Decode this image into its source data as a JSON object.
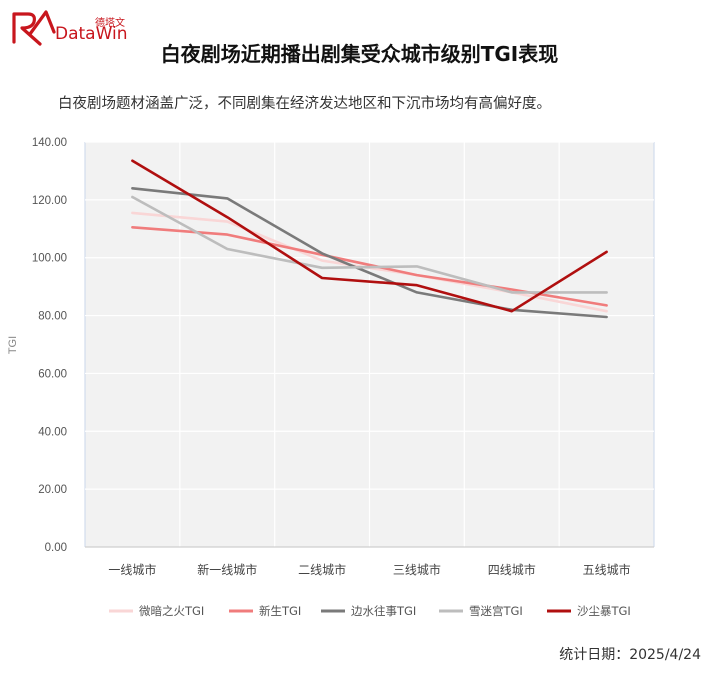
{
  "brand": {
    "cn": "德塔文",
    "en": "DataWin",
    "color": "#c8161d"
  },
  "title": "白夜剧场近期播出剧集受众城市级别TGI表现",
  "subtitle": "白夜剧场题材涵盖广泛，不同剧集在经济发达地区和下沉市场均有高偏好度。",
  "footer": {
    "label": "统计日期：",
    "value": "2025/4/24"
  },
  "chart_data": {
    "type": "line",
    "ylabel": "TGI",
    "ylim": [
      0,
      140
    ],
    "yticks": [
      "0.00",
      "20.00",
      "40.00",
      "60.00",
      "80.00",
      "100.00",
      "120.00",
      "140.00"
    ],
    "grid": true,
    "legend_position": "bottom",
    "categories": [
      "一线城市",
      "新一线城市",
      "二线城市",
      "三线城市",
      "四线城市",
      "五线城市"
    ],
    "series": [
      {
        "name": "微暗之火TGI",
        "color": "#f9d6d6",
        "values": [
          115.5,
          112.5,
          99.0,
          94.0,
          88.0,
          81.5
        ]
      },
      {
        "name": "新生TGI",
        "color": "#f07c7c",
        "values": [
          110.5,
          108.0,
          101.0,
          94.0,
          89.0,
          83.5
        ]
      },
      {
        "name": "边水往事TGI",
        "color": "#7a7a7a",
        "values": [
          124.0,
          120.5,
          101.5,
          88.0,
          82.0,
          79.5
        ]
      },
      {
        "name": "雪迷宫TGI",
        "color": "#bdbdbd",
        "values": [
          121.0,
          103.0,
          96.5,
          97.0,
          88.0,
          88.0
        ]
      },
      {
        "name": "沙尘暴TGI",
        "color": "#b00f0f",
        "values": [
          133.5,
          114.0,
          93.0,
          90.5,
          81.5,
          102.0
        ]
      }
    ]
  }
}
